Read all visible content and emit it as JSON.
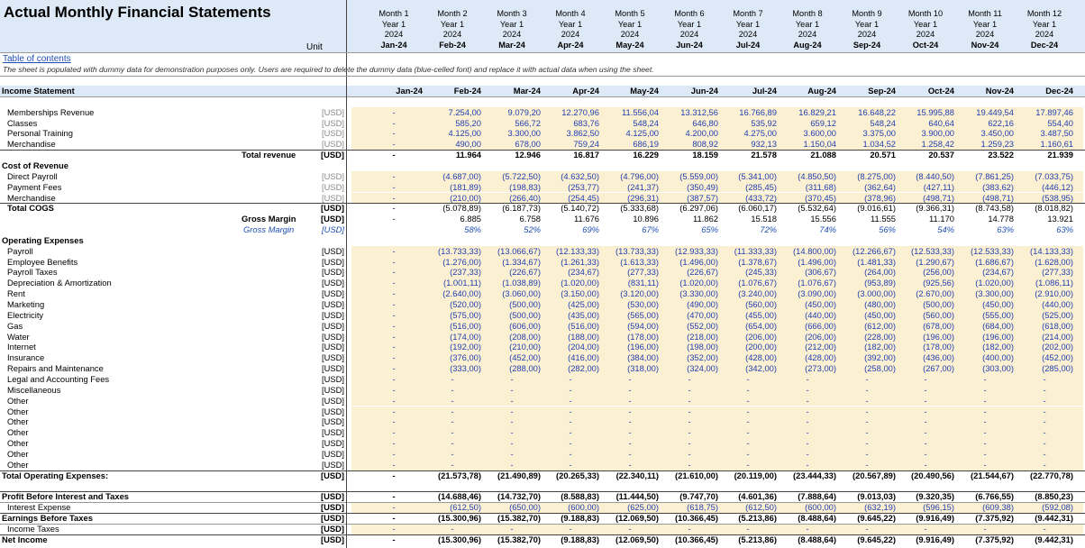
{
  "title": "Actual Monthly Financial Statements",
  "unit_label": "Unit",
  "table_of_contents": "Table of contents",
  "note": "The sheet is populated with dummy data for demonstration purposes only. Users are required to delete the dummy data (blue-celled font) and replace it with actual data when using the sheet.",
  "header": {
    "months": [
      "Month 1",
      "Month 2",
      "Month 3",
      "Month 4",
      "Month 5",
      "Month 6",
      "Month 7",
      "Month 8",
      "Month 9",
      "Month 10",
      "Month 11",
      "Month 12"
    ],
    "years": [
      "Year 1",
      "Year 1",
      "Year 1",
      "Year 1",
      "Year 1",
      "Year 1",
      "Year 1",
      "Year 1",
      "Year 1",
      "Year 1",
      "Year 1",
      "Year 1"
    ],
    "calendar_years": [
      "2024",
      "2024",
      "2024",
      "2024",
      "2024",
      "2024",
      "2024",
      "2024",
      "2024",
      "2024",
      "2024",
      "2024"
    ],
    "dates": [
      "Jan-24",
      "Feb-24",
      "Mar-24",
      "Apr-24",
      "May-24",
      "Jun-24",
      "Jul-24",
      "Aug-24",
      "Sep-24",
      "Oct-24",
      "Nov-24",
      "Dec-24"
    ]
  },
  "colors": {
    "header_bg": "#dde9f6",
    "input_bg": "#fcf0d2",
    "input_font": "#1f3fb0"
  },
  "rows": [
    {
      "label": "Income Statement",
      "style": "section",
      "band": true,
      "dates": true
    },
    {
      "label": "",
      "style": "blank"
    },
    {
      "label": "Memberships Revenue",
      "unit": "[USD]",
      "style": "input",
      "values": [
        "-",
        "7.254,00",
        "9.079,20",
        "12.270,96",
        "11.556,04",
        "13.312,56",
        "16.766,89",
        "16.829,21",
        "16.648,22",
        "15.995,88",
        "19.449,54",
        "17.897,46"
      ]
    },
    {
      "label": "Classes",
      "unit": "[USD]",
      "style": "input",
      "values": [
        "-",
        "585,20",
        "566,72",
        "683,76",
        "548,24",
        "646,80",
        "535,92",
        "659,12",
        "548,24",
        "640,64",
        "622,16",
        "554,40"
      ]
    },
    {
      "label": "Personal Training",
      "unit": "[USD]",
      "style": "input",
      "values": [
        "-",
        "4.125,00",
        "3.300,00",
        "3.862,50",
        "4.125,00",
        "4.200,00",
        "4.275,00",
        "3.600,00",
        "3.375,00",
        "3.900,00",
        "3.450,00",
        "3.487,50"
      ]
    },
    {
      "label": "Merchandise",
      "unit": "[USD]",
      "style": "input",
      "values": [
        "-",
        "490,00",
        "678,00",
        "759,24",
        "686,19",
        "808,92",
        "932,13",
        "1.150,04",
        "1.034,52",
        "1.258,42",
        "1.259,23",
        "1.160,61"
      ]
    },
    {
      "label": "Total revenue",
      "unit": "[USD]",
      "style": "total",
      "values": [
        "-",
        "11.964",
        "12.946",
        "16.817",
        "16.229",
        "18.159",
        "21.578",
        "21.088",
        "20.571",
        "20.537",
        "23.522",
        "21.939"
      ]
    },
    {
      "label": "Cost  of Revenue",
      "style": "subsection"
    },
    {
      "label": "Direct Payroll",
      "unit": "[USD]",
      "style": "input",
      "values": [
        "-",
        "(4.687,00)",
        "(5.722,50)",
        "(4.632,50)",
        "(4.796,00)",
        "(5.559,00)",
        "(5.341,00)",
        "(4.850,50)",
        "(8.275,00)",
        "(8.440,50)",
        "(7.861,25)",
        "(7.033,75)"
      ]
    },
    {
      "label": "Payment Fees",
      "unit": "[USD]",
      "style": "input",
      "values": [
        "-",
        "(181,89)",
        "(198,83)",
        "(253,77)",
        "(241,37)",
        "(350,49)",
        "(285,45)",
        "(311,68)",
        "(362,64)",
        "(427,11)",
        "(383,62)",
        "(446,12)"
      ]
    },
    {
      "label": "Merchandise",
      "unit": "[USD]",
      "style": "input",
      "values": [
        "-",
        "(210,00)",
        "(266,40)",
        "(254,45)",
        "(296,31)",
        "(387,57)",
        "(433,72)",
        "(370,45)",
        "(378,96)",
        "(498,71)",
        "(498,71)",
        "(538,95)"
      ]
    },
    {
      "label": "Total COGS",
      "unit": "[USD]",
      "style": "cogs",
      "values": [
        "-",
        "(5.078,89)",
        "(6.187,73)",
        "(5.140,72)",
        "(5.333,68)",
        "(6.297,06)",
        "(6.060,17)",
        "(5.532,64)",
        "(9.016,61)",
        "(9.366,31)",
        "(8.743,58)",
        "(8.018,82)"
      ]
    },
    {
      "label": "Gross Margin",
      "unit": "[USD]",
      "style": "gm",
      "values": [
        "-",
        "6.885",
        "6.758",
        "11.676",
        "10.896",
        "11.862",
        "15.518",
        "15.556",
        "11.555",
        "11.170",
        "14.778",
        "13.921"
      ]
    },
    {
      "label": "Gross Margin",
      "unit": "[USD]",
      "style": "pct",
      "values": [
        "",
        "58%",
        "52%",
        "69%",
        "67%",
        "65%",
        "72%",
        "74%",
        "56%",
        "54%",
        "63%",
        "63%"
      ]
    },
    {
      "label": "Operating Expenses",
      "style": "subsection"
    },
    {
      "label": "Payroll",
      "unit": "[USD]",
      "style": "opex",
      "values": [
        "-",
        "(13.733,33)",
        "(13.066,67)",
        "(12.133,33)",
        "(13.733,33)",
        "(12.933,33)",
        "(11.333,33)",
        "(14.800,00)",
        "(12.266,67)",
        "(12.533,33)",
        "(12.533,33)",
        "(14.133,33)"
      ]
    },
    {
      "label": "Employee Benefits",
      "unit": "[USD]",
      "style": "opex",
      "values": [
        "-",
        "(1.276,00)",
        "(1.334,67)",
        "(1.261,33)",
        "(1.613,33)",
        "(1.496,00)",
        "(1.378,67)",
        "(1.496,00)",
        "(1.481,33)",
        "(1.290,67)",
        "(1.686,67)",
        "(1.628,00)"
      ]
    },
    {
      "label": "Payroll Taxes",
      "unit": "[USD]",
      "style": "opex",
      "values": [
        "-",
        "(237,33)",
        "(226,67)",
        "(234,67)",
        "(277,33)",
        "(226,67)",
        "(245,33)",
        "(306,67)",
        "(264,00)",
        "(256,00)",
        "(234,67)",
        "(277,33)"
      ]
    },
    {
      "label": "Depreciation & Amortization",
      "unit": "[USD]",
      "style": "opex",
      "values": [
        "-",
        "(1.001,11)",
        "(1.038,89)",
        "(1.020,00)",
        "(831,11)",
        "(1.020,00)",
        "(1.076,67)",
        "(1.076,67)",
        "(953,89)",
        "(925,56)",
        "(1.020,00)",
        "(1.086,11)"
      ]
    },
    {
      "label": "Rent",
      "unit": "[USD]",
      "style": "opex",
      "values": [
        "-",
        "(2.640,00)",
        "(3.060,00)",
        "(3.150,00)",
        "(3.120,00)",
        "(3.330,00)",
        "(3.240,00)",
        "(3.090,00)",
        "(3.000,00)",
        "(2.670,00)",
        "(3.300,00)",
        "(2.910,00)"
      ]
    },
    {
      "label": "Marketing",
      "unit": "[USD]",
      "style": "opex",
      "values": [
        "-",
        "(520,00)",
        "(500,00)",
        "(425,00)",
        "(530,00)",
        "(490,00)",
        "(560,00)",
        "(450,00)",
        "(480,00)",
        "(500,00)",
        "(450,00)",
        "(440,00)"
      ]
    },
    {
      "label": "Electricity",
      "unit": "[USD]",
      "style": "opex",
      "values": [
        "-",
        "(575,00)",
        "(500,00)",
        "(435,00)",
        "(565,00)",
        "(470,00)",
        "(455,00)",
        "(440,00)",
        "(450,00)",
        "(560,00)",
        "(555,00)",
        "(525,00)"
      ]
    },
    {
      "label": "Gas",
      "unit": "[USD]",
      "style": "opex",
      "values": [
        "-",
        "(516,00)",
        "(606,00)",
        "(516,00)",
        "(594,00)",
        "(552,00)",
        "(654,00)",
        "(666,00)",
        "(612,00)",
        "(678,00)",
        "(684,00)",
        "(618,00)"
      ]
    },
    {
      "label": "Water",
      "unit": "[USD]",
      "style": "opex",
      "values": [
        "-",
        "(174,00)",
        "(208,00)",
        "(188,00)",
        "(178,00)",
        "(218,00)",
        "(206,00)",
        "(206,00)",
        "(228,00)",
        "(196,00)",
        "(196,00)",
        "(214,00)"
      ]
    },
    {
      "label": "Internet",
      "unit": "[USD]",
      "style": "opex",
      "values": [
        "-",
        "(192,00)",
        "(210,00)",
        "(204,00)",
        "(196,00)",
        "(198,00)",
        "(200,00)",
        "(212,00)",
        "(182,00)",
        "(178,00)",
        "(182,00)",
        "(202,00)"
      ]
    },
    {
      "label": "Insurance",
      "unit": "[USD]",
      "style": "opex",
      "values": [
        "-",
        "(376,00)",
        "(452,00)",
        "(416,00)",
        "(384,00)",
        "(352,00)",
        "(428,00)",
        "(428,00)",
        "(392,00)",
        "(436,00)",
        "(400,00)",
        "(452,00)"
      ]
    },
    {
      "label": "Repairs and Maintenance",
      "unit": "[USD]",
      "style": "opex",
      "values": [
        "-",
        "(333,00)",
        "(288,00)",
        "(282,00)",
        "(318,00)",
        "(324,00)",
        "(342,00)",
        "(273,00)",
        "(258,00)",
        "(267,00)",
        "(303,00)",
        "(285,00)"
      ]
    },
    {
      "label": "Legal and Accounting Fees",
      "unit": "[USD]",
      "style": "opex",
      "values": [
        "-",
        "-",
        "-",
        "-",
        "-",
        "-",
        "-",
        "-",
        "-",
        "-",
        "-",
        "-"
      ]
    },
    {
      "label": "Miscellaneous",
      "unit": "[USD]",
      "style": "opex",
      "values": [
        "-",
        "-",
        "-",
        "-",
        "-",
        "-",
        "-",
        "-",
        "-",
        "-",
        "-",
        "-"
      ]
    },
    {
      "label": "Other",
      "unit": "[USD]",
      "style": "opex",
      "values": [
        "-",
        "-",
        "-",
        "-",
        "-",
        "-",
        "-",
        "-",
        "-",
        "-",
        "-",
        "-"
      ]
    },
    {
      "label": "Other",
      "unit": "[USD]",
      "style": "opex",
      "values": [
        "-",
        "-",
        "-",
        "-",
        "-",
        "-",
        "-",
        "-",
        "-",
        "-",
        "-",
        "-"
      ]
    },
    {
      "label": "Other",
      "unit": "[USD]",
      "style": "opex",
      "values": [
        "-",
        "-",
        "-",
        "-",
        "-",
        "-",
        "-",
        "-",
        "-",
        "-",
        "-",
        "-"
      ]
    },
    {
      "label": "Other",
      "unit": "[USD]",
      "style": "opex",
      "values": [
        "-",
        "-",
        "-",
        "-",
        "-",
        "-",
        "-",
        "-",
        "-",
        "-",
        "-",
        "-"
      ]
    },
    {
      "label": "Other",
      "unit": "[USD]",
      "style": "opex",
      "values": [
        "-",
        "-",
        "-",
        "-",
        "-",
        "-",
        "-",
        "-",
        "-",
        "-",
        "-",
        "-"
      ]
    },
    {
      "label": "Other",
      "unit": "[USD]",
      "style": "opex",
      "values": [
        "-",
        "-",
        "-",
        "-",
        "-",
        "-",
        "-",
        "-",
        "-",
        "-",
        "-",
        "-"
      ]
    },
    {
      "label": "Other",
      "unit": "[USD]",
      "style": "opex",
      "values": [
        "-",
        "-",
        "-",
        "-",
        "-",
        "-",
        "-",
        "-",
        "-",
        "-",
        "-",
        "-"
      ]
    },
    {
      "label": "Total Operating Expenses:",
      "unit": "[USD]",
      "style": "bigtotal",
      "values": [
        "-",
        "(21.573,78)",
        "(21.490,89)",
        "(20.265,33)",
        "(22.340,11)",
        "(21.610,00)",
        "(20.119,00)",
        "(23.444,33)",
        "(20.567,89)",
        "(20.490,56)",
        "(21.544,67)",
        "(22.770,78)"
      ]
    },
    {
      "label": "",
      "style": "blank"
    },
    {
      "label": "Profit Before Interest and Taxes",
      "unit": "[USD]",
      "style": "bigtotal",
      "values": [
        "-",
        "(14.688,46)",
        "(14.732,70)",
        "(8.588,83)",
        "(11.444,50)",
        "(9.747,70)",
        "(4.601,36)",
        "(7.888,64)",
        "(9.013,03)",
        "(9.320,35)",
        "(6.766,55)",
        "(8.850,23)"
      ]
    },
    {
      "label": "Interest Expense",
      "unit": "[USD]",
      "style": "input-sub",
      "values": [
        "-",
        "(612,50)",
        "(650,00)",
        "(600,00)",
        "(625,00)",
        "(618,75)",
        "(612,50)",
        "(600,00)",
        "(632,19)",
        "(596,15)",
        "(609,38)",
        "(592,08)"
      ]
    },
    {
      "label": "Earnings Before Taxes",
      "unit": "[USD]",
      "style": "bigtotal",
      "values": [
        "-",
        "(15.300,96)",
        "(15.382,70)",
        "(9.188,83)",
        "(12.069,50)",
        "(10.366,45)",
        "(5.213,86)",
        "(8.488,64)",
        "(9.645,22)",
        "(9.916,49)",
        "(7.375,92)",
        "(9.442,31)"
      ]
    },
    {
      "label": "Income Taxes",
      "unit": "[USD]",
      "style": "input-sub",
      "values": [
        "-",
        "-",
        "-",
        "-",
        "-",
        "-",
        "-",
        "-",
        "-",
        "-",
        "-",
        "-"
      ]
    },
    {
      "label": "Net Income",
      "unit": "[USD]",
      "style": "bigtotal",
      "values": [
        "-",
        "(15.300,96)",
        "(15.382,70)",
        "(9.188,83)",
        "(12.069,50)",
        "(10.366,45)",
        "(5.213,86)",
        "(8.488,64)",
        "(9.645,22)",
        "(9.916,49)",
        "(7.375,92)",
        "(9.442,31)"
      ]
    }
  ]
}
